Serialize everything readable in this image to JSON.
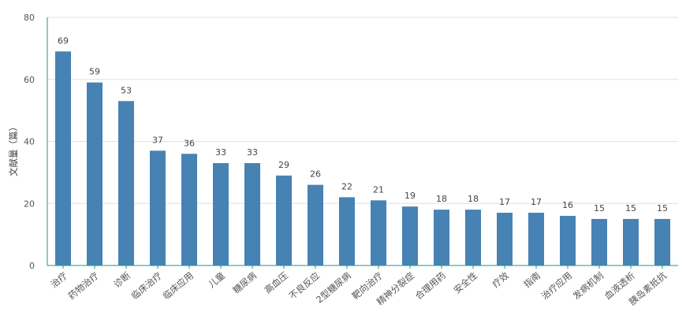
{
  "chart_data": {
    "type": "bar",
    "title": "",
    "xlabel": "",
    "ylabel": "文献量（篇）",
    "ylim": [
      0,
      80
    ],
    "yticks": [
      0,
      20,
      40,
      60,
      80
    ],
    "grid": true,
    "colors": {
      "bar": "#4682b4",
      "axis": "#1a9a8a",
      "grid": "#e0e0e0"
    },
    "categories": [
      "治疗",
      "药物治疗",
      "诊断",
      "临床治疗",
      "临床应用",
      "儿童",
      "糖尿病",
      "高血压",
      "不良反应",
      "2型糖尿病",
      "靶向治疗",
      "精神分裂症",
      "合理用药",
      "安全性",
      "疗效",
      "指南",
      "治疗应用",
      "发病机制",
      "血液透析",
      "胰岛素抵抗"
    ],
    "values": [
      69,
      59,
      53,
      37,
      36,
      33,
      33,
      29,
      26,
      22,
      21,
      19,
      18,
      18,
      17,
      17,
      16,
      15,
      15,
      15
    ]
  }
}
